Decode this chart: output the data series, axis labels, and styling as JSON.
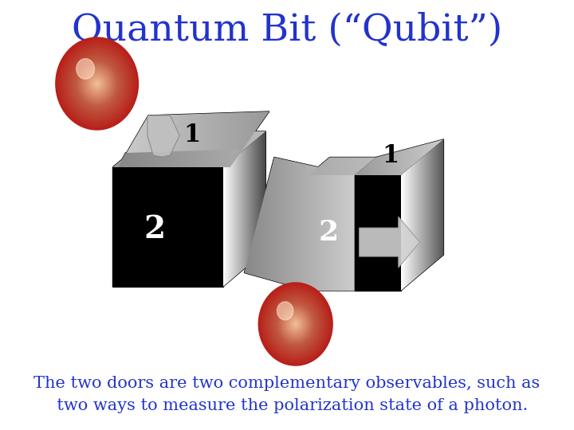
{
  "title": "Quantum Bit (“Qubit”)",
  "title_color": "#2233CC",
  "title_fontsize": 34,
  "body_text": "The two doors are two complementary observables, such as\n  two ways to measure the polarization state of a photon.",
  "body_color": "#2233CC",
  "body_fontsize": 15,
  "bg_color": "#FFFFFF"
}
